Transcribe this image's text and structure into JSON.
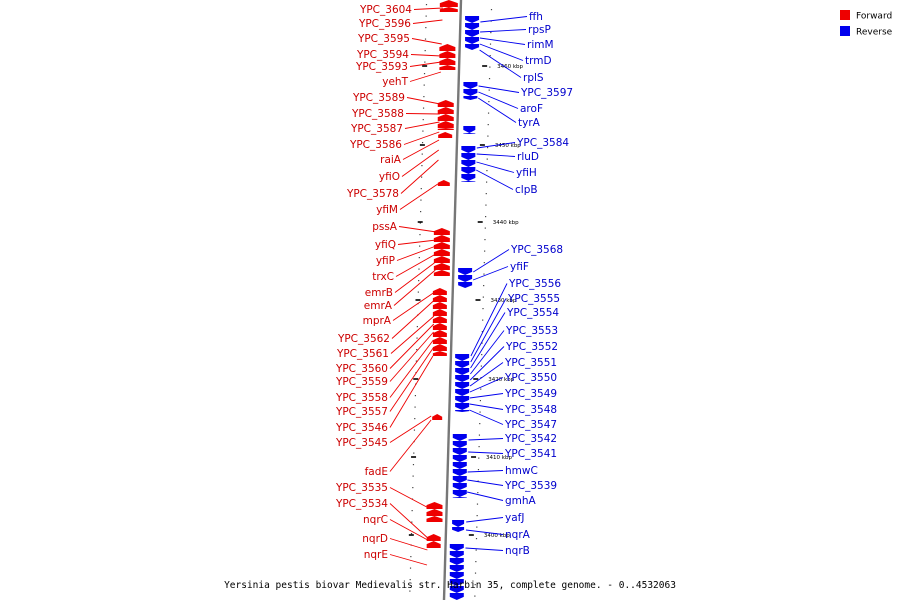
{
  "legend": [
    {
      "label": "Forward",
      "color": "#ee0000"
    },
    {
      "label": "Reverse",
      "color": "#0000ee"
    }
  ],
  "caption": "Yersinia pestis biovar Medievalis str. Harbin 35, complete genome. - 0..4532063",
  "ticks": [
    "3460 kbp",
    "3450 kbp",
    "3440 kbp",
    "3430 kbp",
    "3420 kbp",
    "3410 kbp",
    "3400 kbp"
  ],
  "forward_genes": [
    "YPC_3604",
    "YPC_3596",
    "YPC_3595",
    "YPC_3594",
    "YPC_3593",
    "yehT",
    "YPC_3589",
    "YPC_3588",
    "YPC_3587",
    "YPC_3586",
    "raiA",
    "yfiO",
    "YPC_3578",
    "yfiM",
    "pssA",
    "yfiQ",
    "yfiP",
    "trxC",
    "emrB",
    "emrA",
    "mprA",
    "YPC_3562",
    "YPC_3561",
    "YPC_3560",
    "YPC_3559",
    "YPC_3558",
    "YPC_3557",
    "YPC_3546",
    "YPC_3545",
    "fadE",
    "YPC_3535",
    "YPC_3534",
    "nqrC",
    "nqrD",
    "nqrE"
  ],
  "reverse_genes": [
    "ffh",
    "rpsP",
    "rimM",
    "trmD",
    "rplS",
    "YPC_3597",
    "aroF",
    "tyrA",
    "YPC_3584",
    "rluD",
    "yfiH",
    "clpB",
    "YPC_3568",
    "yfiF",
    "YPC_3556",
    "YPC_3555",
    "YPC_3554",
    "YPC_3553",
    "YPC_3552",
    "YPC_3551",
    "YPC_3550",
    "YPC_3549",
    "YPC_3548",
    "YPC_3547",
    "YPC_3542",
    "YPC_3541",
    "hmwC",
    "YPC_3539",
    "gmhA",
    "yafJ",
    "nqrA",
    "nqrB"
  ]
}
